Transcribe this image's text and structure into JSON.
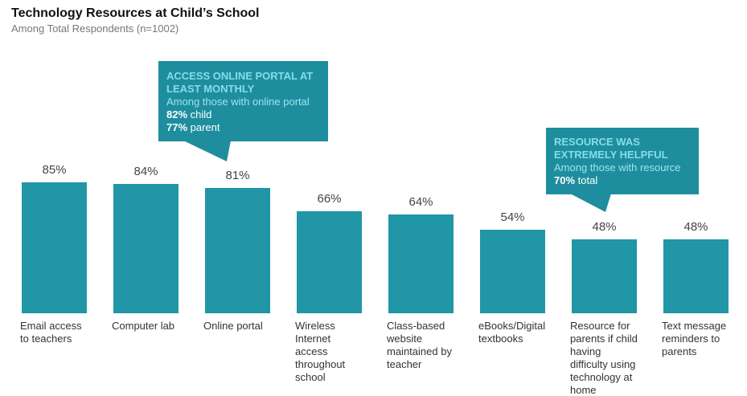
{
  "colors": {
    "bar": "#2196a6",
    "callout": "#1e8e9e",
    "callout_heading": "#86dcea",
    "callout_sub": "#9fe3ee"
  },
  "chart_data": {
    "type": "bar",
    "title": "Technology Resources at Child’s School",
    "subtitle": "Among Total Respondents (n=1002)",
    "categories": [
      "Email access to teachers",
      "Computer lab",
      "Online portal",
      "Wireless Internet access throughout school",
      "Class-based website maintained by teacher",
      "eBooks/Digital textbooks",
      "Resource for parents if child having difficulty using technology at home",
      "Text message reminders to parents"
    ],
    "values": [
      85,
      84,
      81,
      66,
      64,
      54,
      48,
      48
    ],
    "value_labels": [
      "85%",
      "84%",
      "81%",
      "66%",
      "64%",
      "54%",
      "48%",
      "48%"
    ],
    "ylim": [
      0,
      100
    ],
    "grid": false,
    "annotations": [
      {
        "target": "Online portal",
        "heading": "ACCESS ONLINE PORTAL AT LEAST MONTHLY",
        "sub": "Among those with online portal",
        "lines": [
          {
            "bold": "82%",
            "text": " child"
          },
          {
            "bold": "77%",
            "text": " parent"
          }
        ]
      },
      {
        "target": "Resource for parents if child having difficulty using technology at home",
        "heading": "RESOURCE WAS EXTREMELY HELPFUL",
        "sub": "Among those with resource",
        "lines": [
          {
            "bold": "70%",
            "text": " total"
          }
        ]
      }
    ]
  }
}
